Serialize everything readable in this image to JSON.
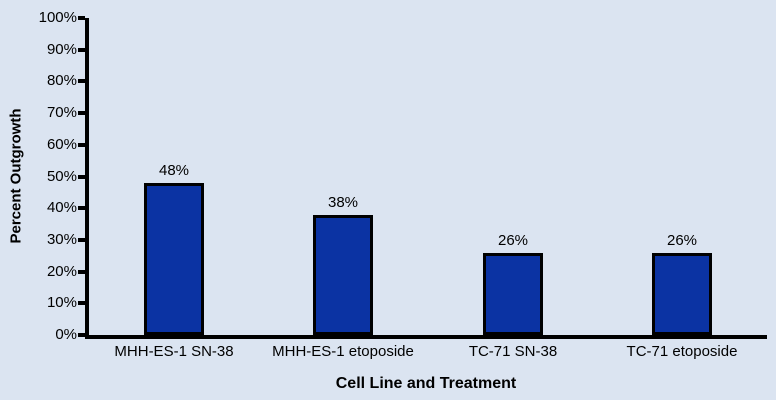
{
  "chart_data": {
    "type": "bar",
    "title": "",
    "xlabel": "Cell Line and Treatment",
    "ylabel": "Percent Outgrowth",
    "categories": [
      "MHH-ES-1 SN-38",
      "MHH-ES-1 etoposide",
      "TC-71 SN-38",
      "TC-71 etoposide"
    ],
    "values": [
      48,
      38,
      26,
      26
    ],
    "value_labels": [
      "48%",
      "38%",
      "26%",
      "26%"
    ],
    "ylim": [
      0,
      100
    ],
    "y_tick_step": 10,
    "y_ticks": [
      {
        "value": 0,
        "label": "0%"
      },
      {
        "value": 10,
        "label": "10%"
      },
      {
        "value": 20,
        "label": "20%"
      },
      {
        "value": 30,
        "label": "30%"
      },
      {
        "value": 40,
        "label": "40%"
      },
      {
        "value": 50,
        "label": "50%"
      },
      {
        "value": 60,
        "label": "60%"
      },
      {
        "value": 70,
        "label": "70%"
      },
      {
        "value": 80,
        "label": "80%"
      },
      {
        "value": 90,
        "label": "90%"
      },
      {
        "value": 100,
        "label": "100%"
      }
    ],
    "grid": false,
    "legend": false,
    "colors": {
      "background": "#dbe4f1",
      "bar_fill": "#0b33a3",
      "bar_border": "#000000",
      "axis": "#000000",
      "text": "#000000"
    }
  }
}
